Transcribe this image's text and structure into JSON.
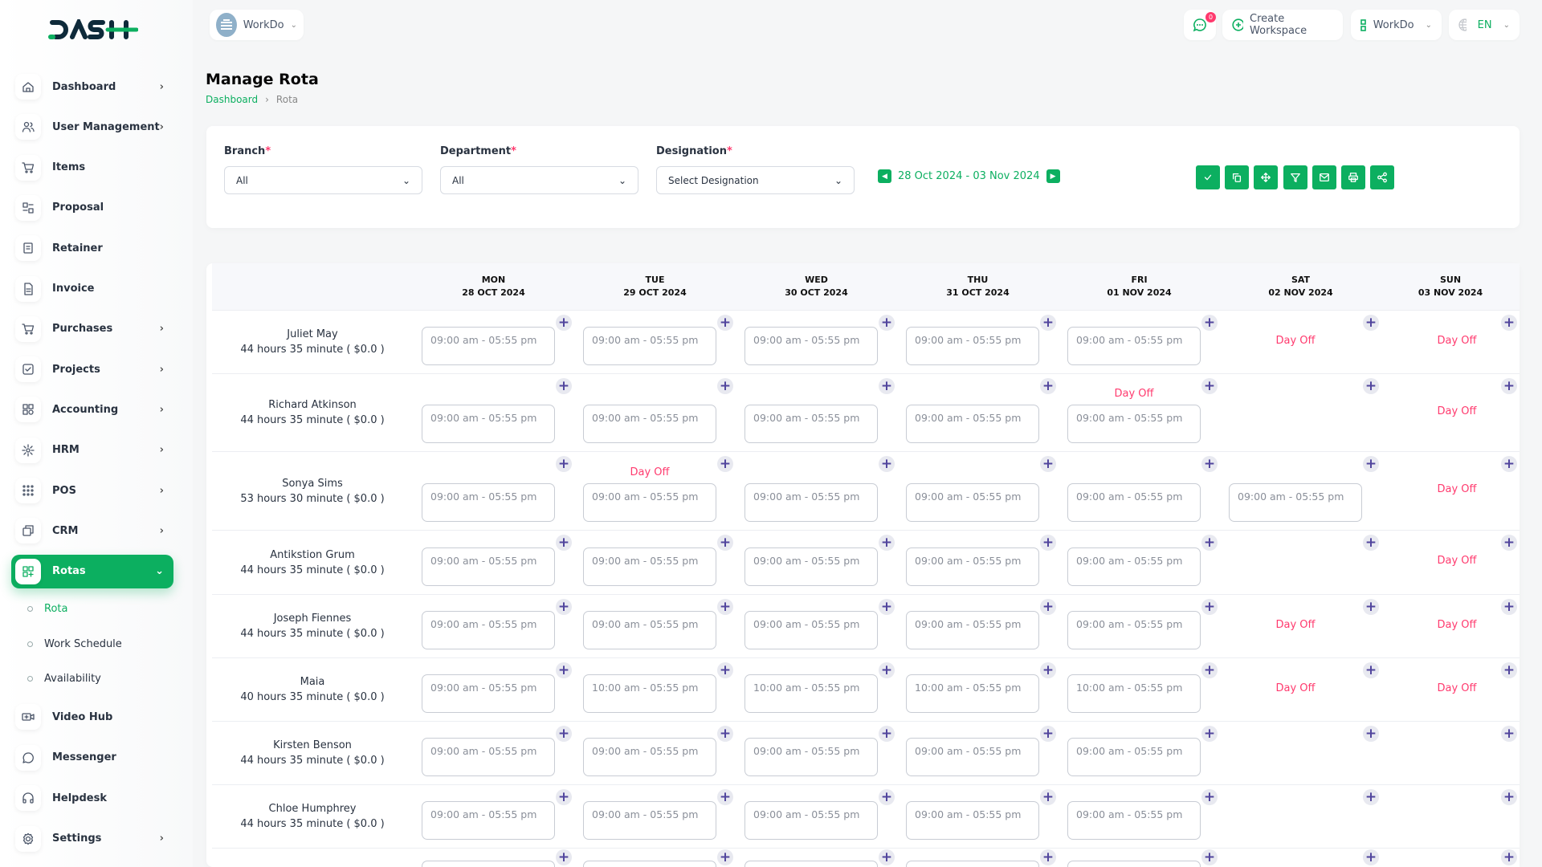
{
  "brand": {
    "logo_text": "DASH",
    "accent": "#0caf60",
    "dayoff_color": "#ff3a6e"
  },
  "topbar": {
    "workspace": "WorkDo",
    "notification_count": "0",
    "create_workspace": "Create Workspace",
    "workspace_menu": "WorkDo",
    "language": "EN"
  },
  "sidebar": {
    "items": [
      {
        "label": "Dashboard",
        "icon": "home-icon",
        "chevron": true
      },
      {
        "label": "User Management",
        "icon": "users-icon",
        "chevron": true
      },
      {
        "label": "Items",
        "icon": "cart-icon",
        "chevron": false
      },
      {
        "label": "Proposal",
        "icon": "proposal-icon",
        "chevron": false
      },
      {
        "label": "Retainer",
        "icon": "retainer-icon",
        "chevron": false
      },
      {
        "label": "Invoice",
        "icon": "invoice-icon",
        "chevron": false
      },
      {
        "label": "Purchases",
        "icon": "cart-icon",
        "chevron": true
      },
      {
        "label": "Projects",
        "icon": "projects-icon",
        "chevron": true
      },
      {
        "label": "Accounting",
        "icon": "accounting-icon",
        "chevron": true
      },
      {
        "label": "HRM",
        "icon": "hrm-icon",
        "chevron": true
      },
      {
        "label": "POS",
        "icon": "grid-icon",
        "chevron": true
      },
      {
        "label": "CRM",
        "icon": "crm-icon",
        "chevron": true
      },
      {
        "label": "Rotas",
        "icon": "apps-add-icon",
        "chevron": true,
        "active": true
      }
    ],
    "subitems": [
      {
        "label": "Rota",
        "active": true
      },
      {
        "label": "Work Schedule"
      },
      {
        "label": "Availability"
      }
    ],
    "items_after": [
      {
        "label": "Video Hub",
        "icon": "video-icon",
        "chevron": false
      },
      {
        "label": "Messenger",
        "icon": "chat-icon",
        "chevron": false
      },
      {
        "label": "Helpdesk",
        "icon": "headphones-icon",
        "chevron": false
      },
      {
        "label": "Settings",
        "icon": "gear-icon",
        "chevron": true
      }
    ]
  },
  "page": {
    "title": "Manage Rota",
    "breadcrumb": [
      "Dashboard",
      "Rota"
    ]
  },
  "filters": {
    "branch": {
      "label": "Branch",
      "value": "All"
    },
    "department": {
      "label": "Department",
      "value": "All"
    },
    "designation": {
      "label": "Designation",
      "value": "Select Designation"
    },
    "date_range": "28 Oct 2024 - 03 Nov 2024",
    "toolbar": [
      "check-icon",
      "copy-icon",
      "move-icon",
      "filter-icon",
      "mail-icon",
      "print-icon",
      "share-icon"
    ]
  },
  "rota": {
    "days": [
      {
        "day": "MON",
        "date": "28 OCT 2024"
      },
      {
        "day": "TUE",
        "date": "29 OCT 2024"
      },
      {
        "day": "WED",
        "date": "30 OCT 2024"
      },
      {
        "day": "THU",
        "date": "31 OCT 2024"
      },
      {
        "day": "FRI",
        "date": "01 NOV 2024"
      },
      {
        "day": "SAT",
        "date": "02 NOV 2024"
      },
      {
        "day": "SUN",
        "date": "03 NOV 2024"
      }
    ],
    "day_off_label": "Day Off",
    "rows": [
      {
        "name": "Juliet May",
        "hours": "44 hours 35 minute ( $0.0 )",
        "cells": [
          {
            "shift": "09:00 am - 05:55 pm"
          },
          {
            "shift": "09:00 am - 05:55 pm"
          },
          {
            "shift": "09:00 am - 05:55 pm"
          },
          {
            "shift": "09:00 am - 05:55 pm"
          },
          {
            "shift": "09:00 am - 05:55 pm"
          },
          {
            "off": true
          },
          {
            "off": true
          }
        ]
      },
      {
        "name": "Richard Atkinson",
        "hours": "44 hours 35 minute ( $0.0 )",
        "cells": [
          {
            "shift": "09:00 am - 05:55 pm"
          },
          {
            "shift": "09:00 am - 05:55 pm"
          },
          {
            "shift": "09:00 am - 05:55 pm"
          },
          {
            "shift": "09:00 am - 05:55 pm"
          },
          {
            "off": true,
            "shift": "09:00 am - 05:55 pm"
          },
          {},
          {
            "off": true
          }
        ]
      },
      {
        "name": "Sonya Sims",
        "hours": "53 hours 30 minute ( $0.0 )",
        "cells": [
          {
            "shift": "09:00 am - 05:55 pm"
          },
          {
            "off": true,
            "shift": "09:00 am - 05:55 pm"
          },
          {
            "shift": "09:00 am - 05:55 pm"
          },
          {
            "shift": "09:00 am - 05:55 pm"
          },
          {
            "shift": "09:00 am - 05:55 pm"
          },
          {
            "shift": "09:00 am - 05:55 pm"
          },
          {
            "off": true
          }
        ]
      },
      {
        "name": "Antikstion Grum",
        "hours": "44 hours 35 minute ( $0.0 )",
        "cells": [
          {
            "shift": "09:00 am - 05:55 pm"
          },
          {
            "shift": "09:00 am - 05:55 pm"
          },
          {
            "shift": "09:00 am - 05:55 pm"
          },
          {
            "shift": "09:00 am - 05:55 pm"
          },
          {
            "shift": "09:00 am - 05:55 pm"
          },
          {},
          {
            "off": true
          }
        ]
      },
      {
        "name": "Joseph Fiennes",
        "hours": "44 hours 35 minute ( $0.0 )",
        "cells": [
          {
            "shift": "09:00 am - 05:55 pm"
          },
          {
            "shift": "09:00 am - 05:55 pm"
          },
          {
            "shift": "09:00 am - 05:55 pm"
          },
          {
            "shift": "09:00 am - 05:55 pm"
          },
          {
            "shift": "09:00 am - 05:55 pm"
          },
          {
            "off": true
          },
          {
            "off": true
          }
        ]
      },
      {
        "name": "Maia",
        "hours": "40 hours 35 minute ( $0.0 )",
        "cells": [
          {
            "shift": "09:00 am - 05:55 pm"
          },
          {
            "shift": "10:00 am - 05:55 pm"
          },
          {
            "shift": "10:00 am - 05:55 pm"
          },
          {
            "shift": "10:00 am - 05:55 pm"
          },
          {
            "shift": "10:00 am - 05:55 pm"
          },
          {
            "off": true
          },
          {
            "off": true
          }
        ]
      },
      {
        "name": "Kirsten Benson",
        "hours": "44 hours 35 minute ( $0.0 )",
        "cells": [
          {
            "shift": "09:00 am - 05:55 pm"
          },
          {
            "shift": "09:00 am - 05:55 pm"
          },
          {
            "shift": "09:00 am - 05:55 pm"
          },
          {
            "shift": "09:00 am - 05:55 pm"
          },
          {
            "shift": "09:00 am - 05:55 pm"
          },
          {},
          {}
        ]
      },
      {
        "name": "Chloe Humphrey",
        "hours": "44 hours 35 minute ( $0.0 )",
        "cells": [
          {
            "shift": "09:00 am - 05:55 pm"
          },
          {
            "shift": "09:00 am - 05:55 pm"
          },
          {
            "shift": "09:00 am - 05:55 pm"
          },
          {
            "shift": "09:00 am - 05:55 pm"
          },
          {
            "shift": "09:00 am - 05:55 pm"
          },
          {},
          {}
        ]
      },
      {
        "name": "",
        "hours": "",
        "cells": [
          {
            "shift": ""
          },
          {
            "shift": ""
          },
          {
            "shift": ""
          },
          {
            "shift": ""
          },
          {
            "shift": ""
          },
          {},
          {}
        ]
      }
    ]
  }
}
